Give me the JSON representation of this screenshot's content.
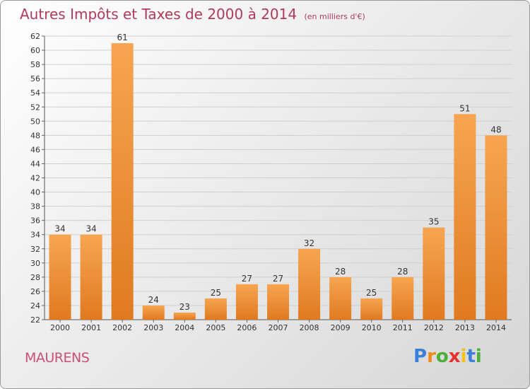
{
  "chart_data": {
    "type": "bar",
    "title": "Autres Impôts et Taxes de 2000 à 2014",
    "subtitle": "(en milliers d'€)",
    "categories": [
      "2000",
      "2001",
      "2002",
      "2003",
      "2004",
      "2005",
      "2006",
      "2007",
      "2008",
      "2009",
      "2010",
      "2011",
      "2012",
      "2013",
      "2014"
    ],
    "values": [
      34,
      34,
      61,
      24,
      23,
      25,
      27,
      27,
      32,
      28,
      25,
      28,
      35,
      51,
      48
    ],
    "data_labels": [
      "34",
      "34",
      "61",
      "24",
      "23",
      "25",
      "27",
      "27",
      "32",
      "28",
      "25",
      "28",
      "35",
      "51",
      "48"
    ],
    "ylim": [
      22,
      62
    ],
    "yticks": [
      "22",
      "24",
      "26",
      "28",
      "30",
      "32",
      "34",
      "36",
      "38",
      "40",
      "42",
      "44",
      "46",
      "48",
      "50",
      "52",
      "54",
      "56",
      "58",
      "60",
      "62"
    ],
    "xlabel": "",
    "ylabel": "",
    "grid": true,
    "bar_color": "#e07a20",
    "bar_color_light": "#f7a551"
  },
  "commune": "MAURENS",
  "logo": {
    "letters": [
      "P",
      "r",
      "o",
      "x",
      "i",
      "t",
      "i"
    ],
    "colors": [
      "#3b7fd9",
      "#f08a1c",
      "#4caf3a",
      "#e6302d",
      "#f4c21c",
      "#3b7fd9",
      "#4caf3a"
    ]
  },
  "colors": {
    "title": "#b03a5b",
    "commune": "#c8507a"
  }
}
